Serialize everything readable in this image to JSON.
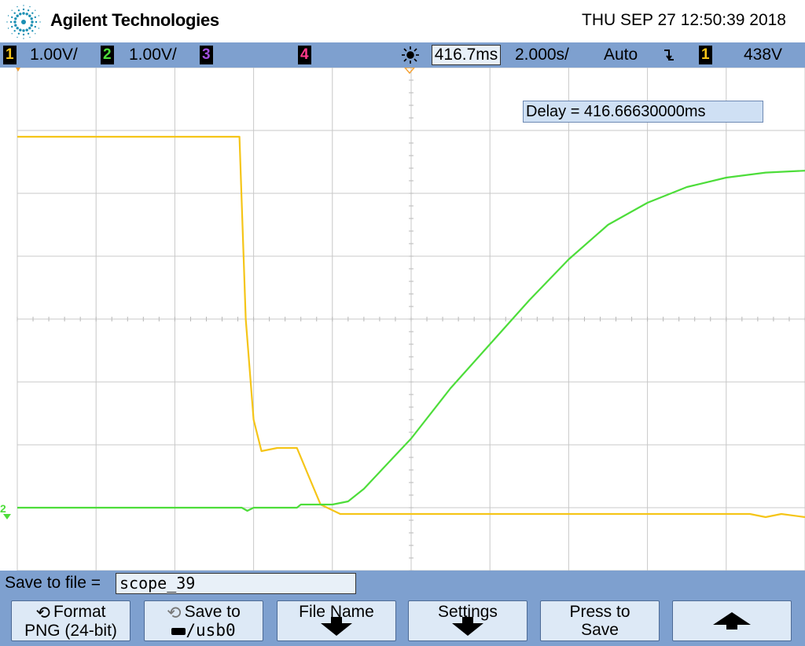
{
  "header": {
    "brand": "Agilent Technologies",
    "datetime": "THU SEP 27 12:50:39 2018",
    "logo_icon": "agilent-spark-logo"
  },
  "status": {
    "ch1_num": "1",
    "ch1_scale": "1.00V/",
    "ch2_num": "2",
    "ch2_scale": "1.00V/",
    "ch3_num": "3",
    "ch4_num": "4",
    "delay_icon": "delay-sun-icon",
    "delay": "416.7ms",
    "timebase": "2.000s/",
    "mode": "Auto",
    "trigger_edge": "¬",
    "trigger_source": "1",
    "trigger_level": "438V"
  },
  "plot": {
    "delay_label": "Delay = 416.66630000ms",
    "ch2_marker": "2"
  },
  "colors": {
    "ch1": "#f5c518",
    "ch2": "#4ddd3a",
    "ch3": "#a050e0",
    "ch4": "#ff3a8c",
    "bar": "#7ea0cf"
  },
  "savebar": {
    "label": "Save to file =",
    "filename": "scope_39"
  },
  "softkeys": {
    "format_title": "Format",
    "format_value": "PNG (24-bit)",
    "saveto_title": "Save to",
    "saveto_value": "/usb0",
    "filename_title": "File Name",
    "settings_title": "Settings",
    "press_title": "Press to",
    "press_value": "Save"
  },
  "chart_data": {
    "type": "line",
    "grid": true,
    "x_divisions": 10,
    "y_divisions": 8,
    "series": [
      {
        "name": "1",
        "color": "#f5c518",
        "points": [
          [
            0,
            2.9
          ],
          [
            2.82,
            2.9
          ],
          [
            2.9,
            0.0
          ],
          [
            3.0,
            -1.6
          ],
          [
            3.1,
            -2.1
          ],
          [
            3.3,
            -2.05
          ],
          [
            3.55,
            -2.05
          ],
          [
            3.7,
            -2.5
          ],
          [
            3.85,
            -2.95
          ],
          [
            4.1,
            -3.1
          ],
          [
            6.0,
            -3.1
          ],
          [
            8.0,
            -3.1
          ],
          [
            9.3,
            -3.1
          ],
          [
            9.5,
            -3.15
          ],
          [
            9.7,
            -3.1
          ],
          [
            10.0,
            -3.15
          ]
        ]
      },
      {
        "name": "2",
        "color": "#4ddd3a",
        "points": [
          [
            0,
            -3.0
          ],
          [
            2.85,
            -3.0
          ],
          [
            2.92,
            -3.05
          ],
          [
            3.0,
            -3.0
          ],
          [
            3.55,
            -3.0
          ],
          [
            3.6,
            -2.95
          ],
          [
            3.9,
            -2.95
          ],
          [
            4.0,
            -2.95
          ],
          [
            4.2,
            -2.9
          ],
          [
            4.4,
            -2.7
          ],
          [
            4.7,
            -2.3
          ],
          [
            5.0,
            -1.9
          ],
          [
            5.5,
            -1.1
          ],
          [
            6.0,
            -0.4
          ],
          [
            6.5,
            0.3
          ],
          [
            7.0,
            0.95
          ],
          [
            7.5,
            1.5
          ],
          [
            8.0,
            1.85
          ],
          [
            8.5,
            2.1
          ],
          [
            9.0,
            2.25
          ],
          [
            9.5,
            2.33
          ],
          [
            10.0,
            2.36
          ]
        ]
      }
    ]
  }
}
